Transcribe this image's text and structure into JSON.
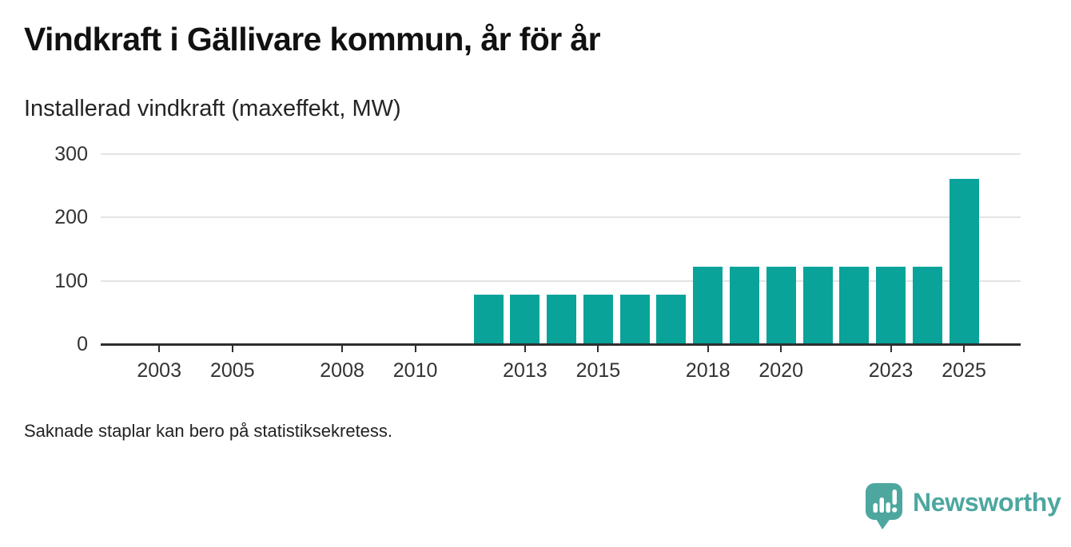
{
  "header": {
    "title": "Vindkraft i Gällivare kommun, år för år",
    "subtitle": "Installerad vindkraft (maxeffekt, MW)"
  },
  "footer": {
    "note": "Saknade staplar kan bero på statistiksekretess.",
    "brand": "Newsworthy",
    "brand_icon": "speech-bubble-bar-chart-icon"
  },
  "colors": {
    "bar": "#0aa39a",
    "logo": "#4da79f",
    "grid": "#e4e4e4",
    "axis_line": "#2e2e2e",
    "axis_text": "#333333",
    "title_text": "#111111",
    "body_text": "#222222"
  },
  "chart_data": {
    "type": "bar",
    "title": "Vindkraft i Gällivare kommun, år för år",
    "subtitle": "Installerad vindkraft (maxeffekt, MW)",
    "unit": "MW",
    "x": [
      2012,
      2013,
      2014,
      2015,
      2016,
      2017,
      2018,
      2019,
      2020,
      2021,
      2022,
      2023,
      2024,
      2025
    ],
    "values": [
      78,
      78,
      78,
      78,
      78,
      78,
      122,
      122,
      122,
      122,
      122,
      122,
      122,
      261
    ],
    "xticks": [
      2003,
      2005,
      2008,
      2010,
      2013,
      2015,
      2018,
      2020,
      2023,
      2025
    ],
    "yticks": [
      0,
      100,
      200,
      300
    ],
    "xlim": [
      2001.4,
      2026.55
    ],
    "ylim": [
      0,
      300
    ],
    "bar_width_years": 0.8,
    "grid": "horizontal",
    "legend": "none",
    "note": "Saknade staplar kan bero på statistiksekretess."
  }
}
